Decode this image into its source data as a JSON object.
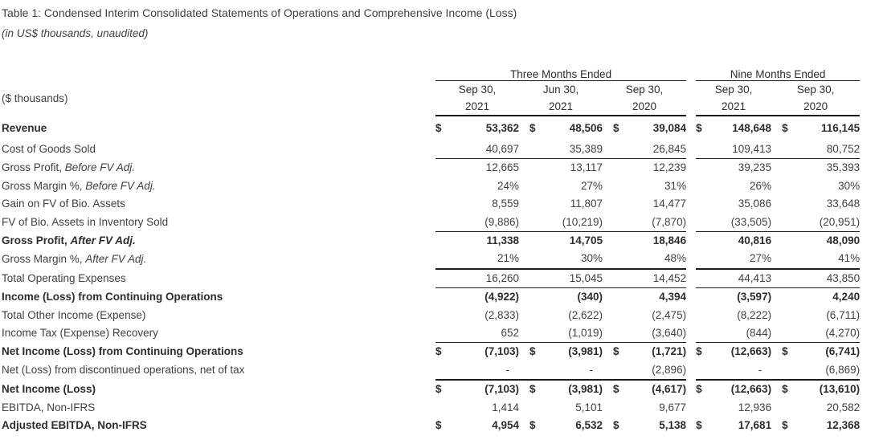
{
  "title": "Table 1: Condensed Interim Consolidated Statements of Operations and Comprehensive Income (Loss)",
  "subtitle": "(in US$ thousands, unaudited)",
  "table": {
    "corner_label": "($ thousands)",
    "groups": [
      {
        "label": "Three Months Ended",
        "columns": [
          {
            "line1": "Sep 30,",
            "line2": "2021"
          },
          {
            "line1": "Jun 30,",
            "line2": "2021"
          },
          {
            "line1": "Sep 30,",
            "line2": "2020"
          }
        ]
      },
      {
        "label": "Nine Months Ended",
        "columns": [
          {
            "line1": "Sep 30,",
            "line2": "2021"
          },
          {
            "line1": "Sep 30,",
            "line2": "2020"
          }
        ]
      }
    ],
    "rows": [
      {
        "label": "Revenue",
        "italic": "",
        "bold": true,
        "dollar": true,
        "rule": "none",
        "values": [
          "53,362",
          "48,506",
          "39,084",
          "148,648",
          "116,145"
        ]
      },
      {
        "label": "Cost of Goods Sold",
        "italic": "",
        "bold": false,
        "dollar": false,
        "rule": "thin",
        "values": [
          "40,697",
          "35,389",
          "26,845",
          "109,413",
          "80,752"
        ]
      },
      {
        "label": "Gross Profit, ",
        "italic": "Before FV Adj.",
        "bold": false,
        "dollar": false,
        "rule": "none",
        "values": [
          "12,665",
          "13,117",
          "12,239",
          "39,235",
          "35,393"
        ]
      },
      {
        "label": "Gross Margin %, ",
        "italic": "Before FV Adj.",
        "bold": false,
        "dollar": false,
        "rule": "none",
        "values": [
          "24%",
          "27%",
          "31%",
          "26%",
          "30%"
        ]
      },
      {
        "label": "Gain on FV of Bio. Assets",
        "italic": "",
        "bold": false,
        "dollar": false,
        "rule": "none",
        "values": [
          "8,559",
          "11,807",
          "14,477",
          "35,086",
          "33,648"
        ]
      },
      {
        "label": "FV of Bio. Assets in Inventory Sold",
        "italic": "",
        "bold": false,
        "dollar": false,
        "rule": "thin",
        "values": [
          "(9,886)",
          "(10,219)",
          "(7,870)",
          "(33,505)",
          "(20,951)"
        ]
      },
      {
        "label": "Gross Profit, ",
        "italic": "After FV Adj.",
        "bold": true,
        "dollar": false,
        "rule": "none",
        "values": [
          "11,338",
          "14,705",
          "18,846",
          "40,816",
          "48,090"
        ]
      },
      {
        "label": "Gross Margin %, ",
        "italic": "After FV Adj.",
        "bold": false,
        "dollar": false,
        "rule": "thick",
        "values": [
          "21%",
          "30%",
          "48%",
          "27%",
          "41%"
        ]
      },
      {
        "label": "Total Operating Expenses",
        "italic": "",
        "bold": false,
        "dollar": false,
        "rule": "thin",
        "values": [
          "16,260",
          "15,045",
          "14,452",
          "44,413",
          "43,850"
        ]
      },
      {
        "label": "Income (Loss) from Continuing Operations",
        "italic": "",
        "bold": true,
        "dollar": false,
        "rule": "none",
        "values": [
          "(4,922)",
          "(340)",
          "4,394",
          "(3,597)",
          "4,240"
        ]
      },
      {
        "label": "Total Other Income (Expense)",
        "italic": "",
        "bold": false,
        "dollar": false,
        "rule": "none",
        "values": [
          "(2,833)",
          "(2,622)",
          "(2,475)",
          "(8,222)",
          "(6,711)"
        ]
      },
      {
        "label": "Income Tax (Expense) Recovery",
        "italic": "",
        "bold": false,
        "dollar": false,
        "rule": "thin",
        "values": [
          "652",
          "(1,019)",
          "(3,640)",
          "(844)",
          "(4,270)"
        ]
      },
      {
        "label": "Net Income (Loss) from Continuing Operations",
        "italic": "",
        "bold": true,
        "dollar": true,
        "rule": "none",
        "values": [
          "(7,103)",
          "(3,981)",
          "(1,721)",
          "(12,663)",
          "(6,741)"
        ]
      },
      {
        "label": "Net (Loss) from discontinued operations, net of tax",
        "italic": "",
        "bold": false,
        "dollar": false,
        "rule": "thick",
        "values": [
          "-",
          "-",
          "(2,896)",
          "-",
          "(6,869)"
        ]
      },
      {
        "label": "Net Income (Loss)",
        "italic": "",
        "bold": true,
        "dollar": true,
        "rule": "none",
        "values": [
          "(7,103)",
          "(3,981)",
          "(4,617)",
          "(12,663)",
          "(13,610)"
        ]
      },
      {
        "label": "EBITDA, Non-IFRS",
        "italic": "",
        "bold": false,
        "dollar": false,
        "rule": "none",
        "values": [
          "1,414",
          "5,101",
          "9,677",
          "12,936",
          "20,582"
        ]
      },
      {
        "label": "Adjusted EBITDA, Non-IFRS",
        "italic": "",
        "bold": true,
        "dollar": true,
        "rule": "none",
        "values": [
          "4,954",
          "6,532",
          "5,138",
          "17,681",
          "12,368"
        ]
      }
    ]
  }
}
